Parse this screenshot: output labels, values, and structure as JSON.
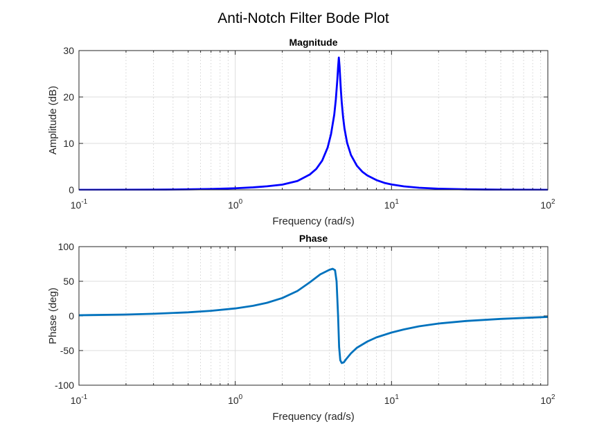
{
  "figure_title": "Anti-Notch Filter Bode Plot",
  "chart_data": [
    {
      "type": "line",
      "title": "Magnitude",
      "xlabel": "Frequency (rad/s)",
      "ylabel": "Amplitude (dB)",
      "xscale": "log",
      "xlim": [
        0.1,
        100
      ],
      "ylim": [
        0,
        30
      ],
      "grid": true,
      "xticks": [
        {
          "value": 0.1,
          "base": "10",
          "exp": "-1"
        },
        {
          "value": 1,
          "base": "10",
          "exp": "0"
        },
        {
          "value": 10,
          "base": "10",
          "exp": "1"
        },
        {
          "value": 100,
          "base": "10",
          "exp": "2"
        }
      ],
      "yticks": [
        {
          "value": 0,
          "label": "0"
        },
        {
          "value": 10,
          "label": "10"
        },
        {
          "value": 20,
          "label": "20"
        },
        {
          "value": 30,
          "label": "30"
        }
      ],
      "series": [
        {
          "name": "Magnitude",
          "color": "#0000ff",
          "x": [
            0.1,
            0.2,
            0.3,
            0.5,
            0.7,
            1.0,
            1.3,
            1.6,
            2.0,
            2.5,
            3.0,
            3.3,
            3.6,
            3.9,
            4.1,
            4.3,
            4.4,
            4.5,
            4.55,
            4.6,
            4.65,
            4.7,
            4.75,
            4.8,
            4.9,
            5.0,
            5.2,
            5.5,
            6.0,
            6.5,
            7.0,
            8.0,
            9.0,
            10,
            12,
            15,
            20,
            30,
            50,
            100
          ],
          "y": [
            0.0,
            0.02,
            0.04,
            0.1,
            0.18,
            0.34,
            0.53,
            0.76,
            1.12,
            1.9,
            3.3,
            4.5,
            6.3,
            9.1,
            12.0,
            16.2,
            19.4,
            23.7,
            26.4,
            28.5,
            26.6,
            23.7,
            21.1,
            18.9,
            15.6,
            13.2,
            10.1,
            7.5,
            5.2,
            3.9,
            3.1,
            2.1,
            1.5,
            1.15,
            0.74,
            0.45,
            0.24,
            0.1,
            0.03,
            0.0
          ]
        }
      ]
    },
    {
      "type": "line",
      "title": "Phase",
      "xlabel": "Frequency (rad/s)",
      "ylabel": "Phase (deg)",
      "xscale": "log",
      "xlim": [
        0.1,
        100
      ],
      "ylim": [
        -100,
        100
      ],
      "grid": true,
      "xticks": [
        {
          "value": 0.1,
          "base": "10",
          "exp": "-1"
        },
        {
          "value": 1,
          "base": "10",
          "exp": "0"
        },
        {
          "value": 10,
          "base": "10",
          "exp": "1"
        },
        {
          "value": 100,
          "base": "10",
          "exp": "2"
        }
      ],
      "yticks": [
        {
          "value": -100,
          "label": "-100"
        },
        {
          "value": -50,
          "label": "-50"
        },
        {
          "value": 0,
          "label": "0"
        },
        {
          "value": 50,
          "label": "50"
        },
        {
          "value": 100,
          "label": "100"
        }
      ],
      "series": [
        {
          "name": "Phase",
          "color": "#0072bd",
          "x": [
            0.1,
            0.2,
            0.3,
            0.5,
            0.7,
            1.0,
            1.3,
            1.6,
            2.0,
            2.5,
            3.0,
            3.5,
            4.0,
            4.2,
            4.35,
            4.45,
            4.55,
            4.62,
            4.7,
            4.8,
            4.95,
            5.1,
            5.5,
            6.0,
            7.0,
            8.0,
            10,
            12,
            15,
            20,
            30,
            50,
            100
          ],
          "y": [
            1.0,
            2.0,
            3.1,
            5.2,
            7.4,
            10.8,
            14.6,
            19.0,
            25.8,
            36.0,
            48.5,
            60.0,
            66.5,
            68.0,
            66.0,
            50.0,
            0.0,
            -45.0,
            -64.0,
            -68.0,
            -67.0,
            -63.0,
            -54.0,
            -46.0,
            -37.0,
            -31.0,
            -24.0,
            -19.5,
            -15.0,
            -11.0,
            -7.3,
            -4.3,
            -1.5
          ]
        }
      ]
    }
  ]
}
